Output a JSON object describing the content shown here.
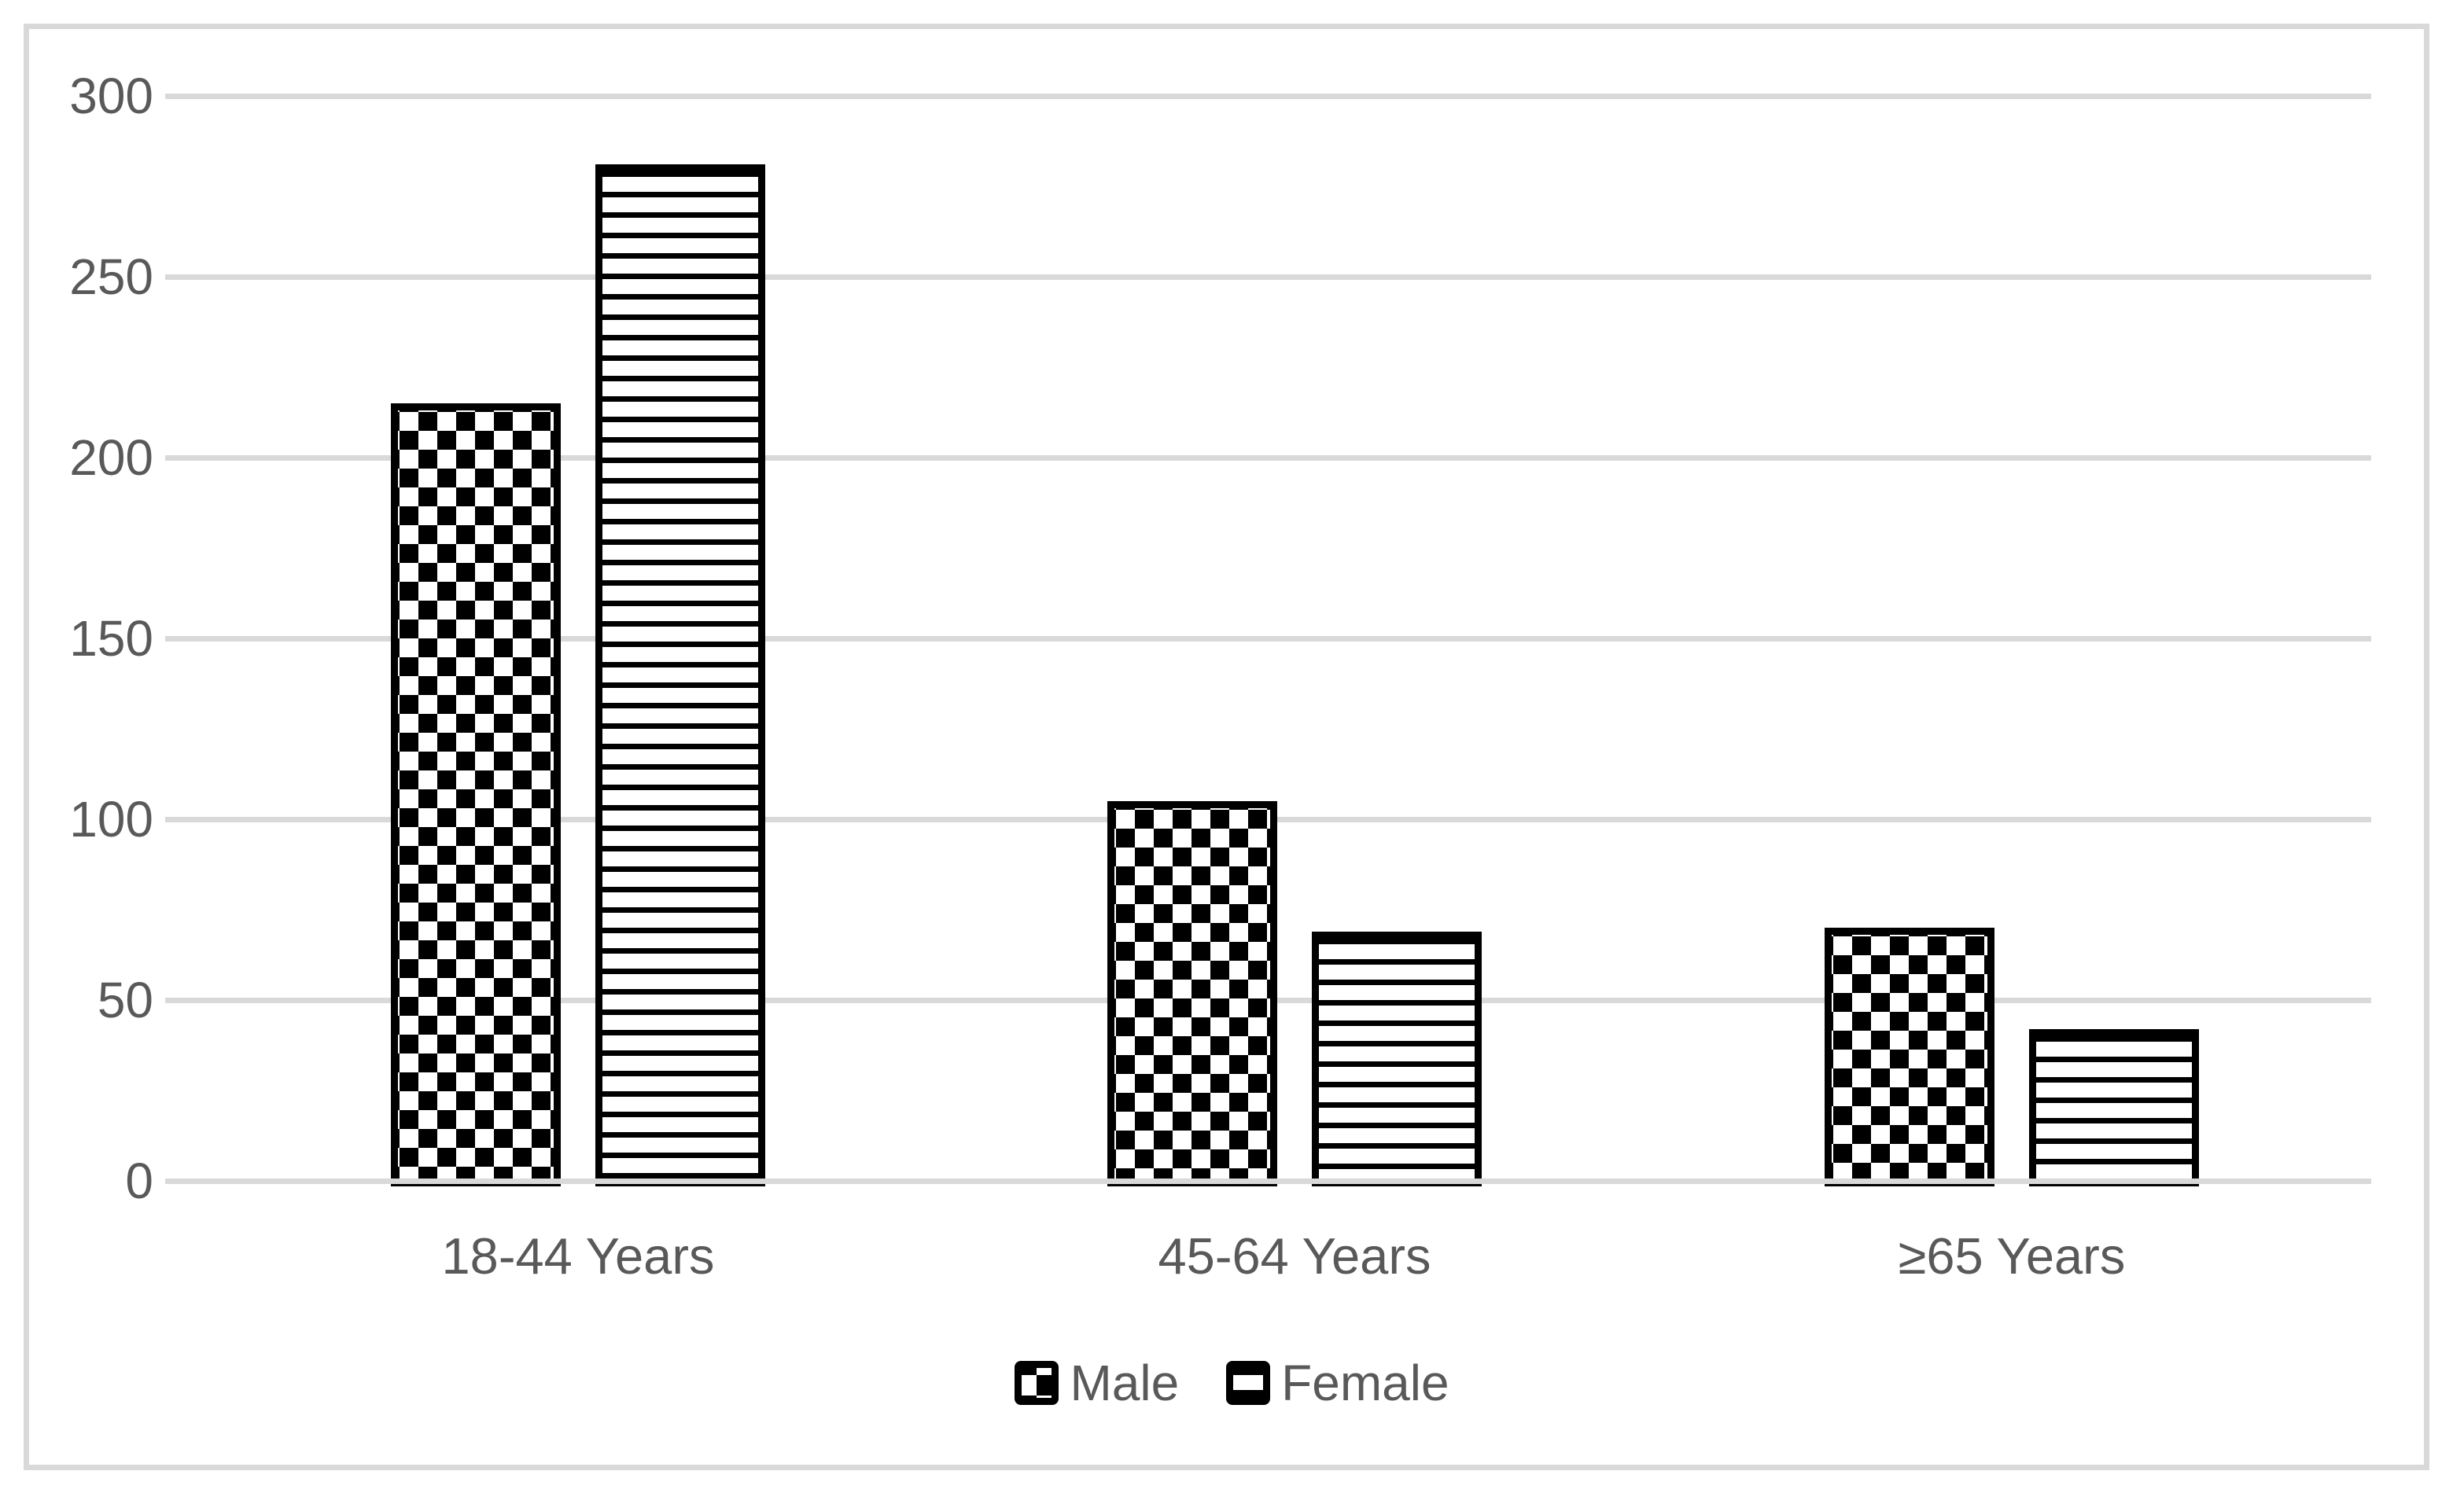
{
  "chart_data": {
    "type": "bar",
    "categories": [
      "18-44 Years",
      "45-64 Years",
      "≥65 Years"
    ],
    "series": [
      {
        "name": "Male",
        "pattern": "checkerboard",
        "values": [
          215,
          105,
          70
        ]
      },
      {
        "name": "Female",
        "pattern": "horizontal-stripes",
        "values": [
          281,
          69,
          42
        ]
      }
    ],
    "title": "",
    "xlabel": "",
    "ylabel": "",
    "ylim": [
      0,
      300
    ],
    "yticks": [
      0,
      50,
      100,
      150,
      200,
      250,
      300
    ],
    "grid": "horizontal",
    "legend_position": "bottom",
    "colors": {
      "bar_fill": "#000000",
      "bar_background": "#ffffff",
      "text": "#595959",
      "gridline": "#d9d9d9",
      "frame_border": "#d9d9d9"
    }
  },
  "legend": {
    "male_label": "Male",
    "female_label": "Female"
  }
}
